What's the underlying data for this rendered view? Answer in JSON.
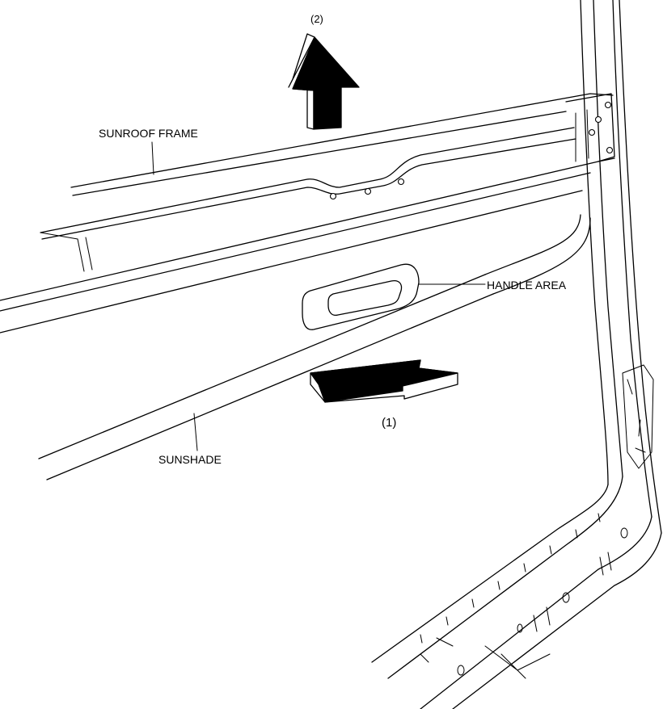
{
  "labels": {
    "sunroof_frame": "SUNROOF FRAME",
    "handle_area": "HANDLE AREA",
    "sunshade": "SUNSHADE",
    "step_1": "(1)",
    "step_2": "(2)"
  },
  "colors": {
    "line": "#000000",
    "background": "#ffffff",
    "arrow_fill": "#000000"
  }
}
